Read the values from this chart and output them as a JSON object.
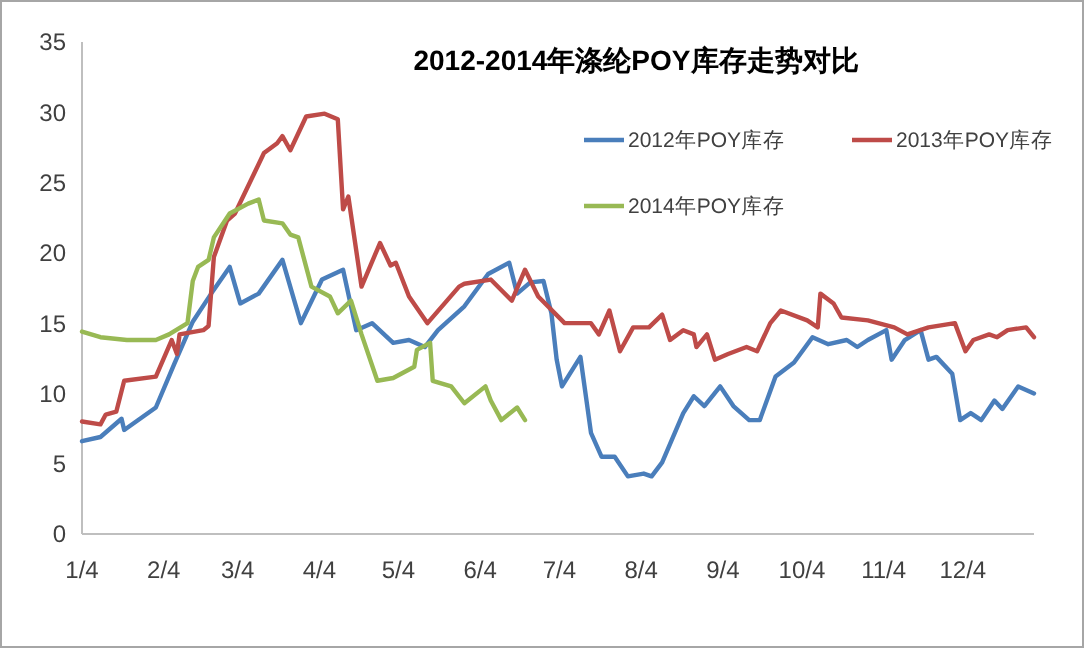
{
  "chart_data": {
    "type": "line",
    "title": "2012-2014年涤纶POY库存走势对比",
    "xlim": [
      "--01-04",
      "--12-31"
    ],
    "xticks": [
      {
        "value": "--01-04",
        "label": "1/4"
      },
      {
        "value": "--02-04",
        "label": "2/4"
      },
      {
        "value": "--03-04",
        "label": "3/4"
      },
      {
        "value": "--04-04",
        "label": "4/4"
      },
      {
        "value": "--05-04",
        "label": "5/4"
      },
      {
        "value": "--06-04",
        "label": "6/4"
      },
      {
        "value": "--07-04",
        "label": "7/4"
      },
      {
        "value": "--08-04",
        "label": "8/4"
      },
      {
        "value": "--09-04",
        "label": "9/4"
      },
      {
        "value": "--10-04",
        "label": "10/4"
      },
      {
        "value": "--11-04",
        "label": "11/4"
      },
      {
        "value": "--12-04",
        "label": "12/4"
      }
    ],
    "ylim": [
      0,
      35
    ],
    "yticks": [
      0,
      5,
      10,
      15,
      20,
      25,
      30,
      35
    ],
    "grid": false,
    "legend": "top right",
    "marker": "none",
    "line_style": "solid",
    "series": [
      {
        "name": "2012年POY库存",
        "color": "#4a7ebb",
        "x": [
          "--01-04",
          "--01-11",
          "--01-19",
          "--01-20",
          "--02-01",
          "--02-08",
          "--02-15",
          "--02-22",
          "--03-01",
          "--03-05",
          "--03-12",
          "--03-21",
          "--03-28",
          "--04-05",
          "--04-13",
          "--04-18",
          "--04-24",
          "--05-02",
          "--05-08",
          "--05-14",
          "--05-19",
          "--05-29",
          "--06-07",
          "--06-15",
          "--06-18",
          "--06-23",
          "--06-28",
          "--07-01",
          "--07-03",
          "--07-05",
          "--07-12",
          "--07-16",
          "--07-20",
          "--07-25",
          "--07-30",
          "--08-05",
          "--08-08",
          "--08-12",
          "--08-20",
          "--08-24",
          "--08-28",
          "--09-03",
          "--09-08",
          "--09-14",
          "--09-18",
          "--09-24",
          "--10-01",
          "--10-08",
          "--10-14",
          "--10-21",
          "--10-25",
          "--10-29",
          "--11-05",
          "--11-07",
          "--11-12",
          "--11-18",
          "--11-21",
          "--11-24",
          "--11-30",
          "--12-03",
          "--12-07",
          "--12-11",
          "--12-16",
          "--12-19",
          "--12-25",
          "--12-31"
        ],
        "values": [
          6.6,
          6.9,
          8.2,
          7.4,
          9,
          12.1,
          15.1,
          17.1,
          19,
          16.4,
          17.1,
          19.5,
          15,
          18.1,
          18.8,
          14.5,
          15,
          13.6,
          13.8,
          13.3,
          14.5,
          16.2,
          18.5,
          19.3,
          17.1,
          17.9,
          18,
          15.7,
          12.4,
          10.5,
          12.6,
          7.2,
          5.5,
          5.5,
          4.1,
          4.3,
          4.1,
          5.1,
          8.6,
          9.8,
          9.1,
          10.5,
          9.1,
          8.1,
          8.1,
          11.2,
          12.2,
          14,
          13.5,
          13.8,
          13.3,
          13.8,
          14.5,
          12.4,
          13.8,
          14.5,
          12.4,
          12.6,
          11.4,
          8.1,
          8.6,
          8.1,
          9.5,
          8.9,
          10.5,
          10
        ]
      },
      {
        "name": "2013年POY库存",
        "color": "#be4b48",
        "x": [
          "--01-04",
          "--01-11",
          "--01-13",
          "--01-17",
          "--01-20",
          "--02-01",
          "--02-07",
          "--02-09",
          "--02-10",
          "--02-19",
          "--02-21",
          "--02-23",
          "--02-28",
          "--03-03",
          "--03-14",
          "--03-19",
          "--03-21",
          "--03-24",
          "--03-30",
          "--04-06",
          "--04-11",
          "--04-13",
          "--04-15",
          "--04-20",
          "--04-27",
          "--05-01",
          "--05-03",
          "--05-08",
          "--05-15",
          "--05-27",
          "--05-29",
          "--06-08",
          "--06-16",
          "--06-21",
          "--06-26",
          "--07-06",
          "--07-16",
          "--07-19",
          "--07-23",
          "--07-27",
          "--08-01",
          "--08-07",
          "--08-12",
          "--08-15",
          "--08-20",
          "--08-24",
          "--08-25",
          "--08-29",
          "--09-01",
          "--09-06",
          "--09-13",
          "--09-17",
          "--09-22",
          "--09-26",
          "--10-06",
          "--10-10",
          "--10-11",
          "--10-16",
          "--10-19",
          "--10-29",
          "--11-08",
          "--11-13",
          "--11-21",
          "--12-01",
          "--12-05",
          "--12-08",
          "--12-14",
          "--12-17",
          "--12-21",
          "--12-28",
          "--12-31"
        ],
        "values": [
          8,
          7.8,
          8.5,
          8.7,
          10.9,
          11.2,
          13.8,
          12.8,
          14.2,
          14.5,
          14.8,
          19.7,
          22.3,
          22.8,
          27.1,
          27.8,
          28.3,
          27.3,
          29.7,
          29.9,
          29.5,
          23.1,
          24,
          17.6,
          20.7,
          19.1,
          19.3,
          16.9,
          15,
          17.6,
          17.8,
          18.1,
          16.6,
          18.8,
          16.9,
          15,
          15,
          14.2,
          15.9,
          13,
          14.7,
          14.7,
          15.6,
          13.8,
          14.5,
          14.2,
          13.3,
          14.2,
          12.4,
          12.8,
          13.3,
          13,
          15,
          15.9,
          15.2,
          14.7,
          17.1,
          16.4,
          15.4,
          15.2,
          14.7,
          14.2,
          14.7,
          15,
          13,
          13.8,
          14.2,
          14,
          14.5,
          14.7,
          14
        ]
      },
      {
        "name": "2014年POY库存",
        "color": "#98b954",
        "x": [
          "--01-04",
          "--01-11",
          "--01-21",
          "--02-01",
          "--02-06",
          "--02-13",
          "--02-15",
          "--02-17",
          "--02-21",
          "--02-23",
          "--03-01",
          "--03-08",
          "--03-12",
          "--03-14",
          "--03-21",
          "--03-24",
          "--03-27",
          "--04-01",
          "--04-08",
          "--04-11",
          "--04-16",
          "--04-20",
          "--04-26",
          "--05-02",
          "--05-10",
          "--05-11",
          "--05-16",
          "--05-17",
          "--05-24",
          "--05-29",
          "--06-06",
          "--06-08",
          "--06-12",
          "--06-18",
          "--06-21"
        ],
        "values": [
          14.4,
          14,
          13.8,
          13.8,
          14.2,
          15,
          18,
          19,
          19.5,
          21.1,
          22.8,
          23.5,
          23.8,
          22.3,
          22.1,
          21.3,
          21.1,
          17.6,
          16.9,
          15.7,
          16.6,
          14.2,
          10.9,
          11.1,
          11.9,
          13.1,
          13.6,
          10.9,
          10.5,
          9.3,
          10.5,
          9.5,
          8.1,
          9,
          8.1
        ]
      }
    ]
  }
}
